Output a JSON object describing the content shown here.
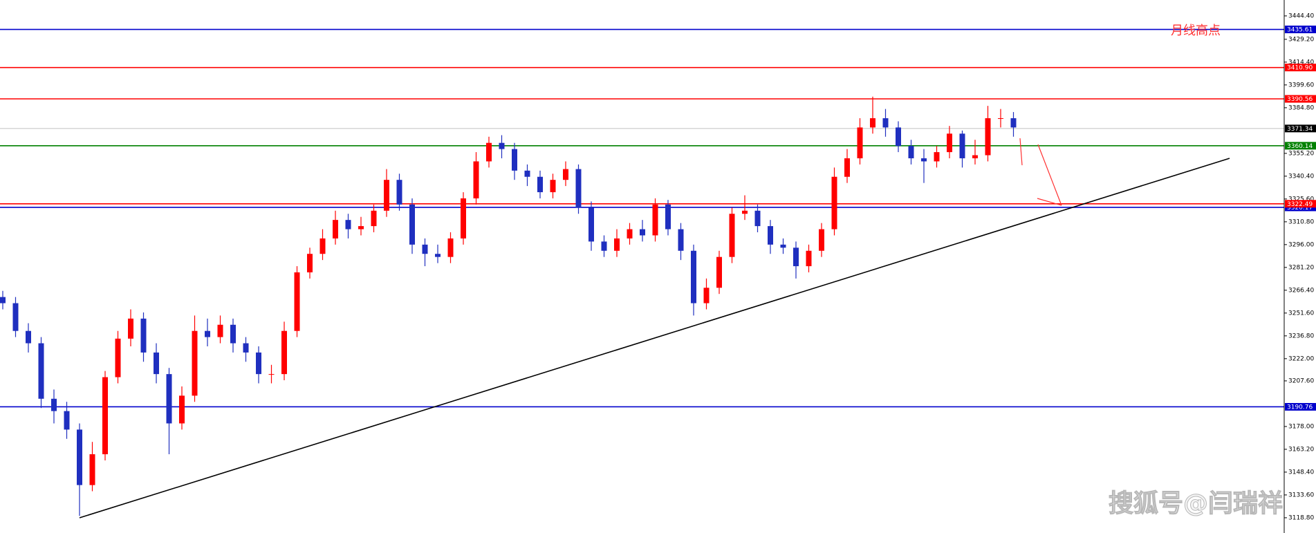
{
  "chart_data": {
    "type": "candlestick",
    "up_color": "#ff0000",
    "down_color": "#1f2fbf",
    "ylim": [
      3108.9,
      3454.7
    ],
    "yticks": [
      {
        "value": 3444.4,
        "label": "3444.40"
      },
      {
        "value": 3429.2,
        "label": "3429.20"
      },
      {
        "value": 3414.4,
        "label": "3414.40"
      },
      {
        "value": 3399.6,
        "label": "3399.60"
      },
      {
        "value": 3384.8,
        "label": "3384.80"
      },
      {
        "value": 3355.2,
        "label": "3355.20"
      },
      {
        "value": 3340.4,
        "label": "3340.40"
      },
      {
        "value": 3325.6,
        "label": "3325.60"
      },
      {
        "value": 3310.8,
        "label": "3310.80"
      },
      {
        "value": 3296,
        "label": "3296.00"
      },
      {
        "value": 3281.2,
        "label": "3281.20"
      },
      {
        "value": 3266.4,
        "label": "3266.40"
      },
      {
        "value": 3251.6,
        "label": "3251.60"
      },
      {
        "value": 3236.8,
        "label": "3236.80"
      },
      {
        "value": 3222,
        "label": "3222.00"
      },
      {
        "value": 3207.6,
        "label": "3207.60"
      },
      {
        "value": 3178,
        "label": "3178.00"
      },
      {
        "value": 3163.2,
        "label": "3163.20"
      },
      {
        "value": 3148.4,
        "label": "3148.40"
      },
      {
        "value": 3133.6,
        "label": "3133.60"
      },
      {
        "value": 3118.8,
        "label": "3118.80"
      }
    ],
    "levels": [
      {
        "value": 3435.61,
        "color": "#0000cc"
      },
      {
        "value": 3410.9,
        "label": "3410.90",
        "color": "#ff0000"
      },
      {
        "value": 3390.56,
        "color": "#ff0000"
      },
      {
        "value": 3371.34,
        "color": "#c0c0c0",
        "label_color": "#000000"
      },
      {
        "value": 3360.14,
        "color": "#008000"
      },
      {
        "value": 3320.17,
        "color": "#0000cc"
      },
      {
        "value": 3322.49,
        "color": "#ff0000"
      },
      {
        "value": 3190.76,
        "color": "#0000cc"
      }
    ],
    "annotation": "月线高点",
    "watermark": "搜狐号@闫瑞祥",
    "open": [
      3262,
      3258,
      3240,
      3232,
      3196,
      3188,
      3176,
      3140,
      3160,
      3210,
      3235,
      3248,
      3226,
      3212,
      3180,
      3198,
      3240,
      3236,
      3244,
      3232,
      3226,
      3212,
      3212,
      3240,
      3278,
      3290,
      3300,
      3312,
      3306,
      3308,
      3318,
      3338,
      3322,
      3296,
      3290,
      3288,
      3300,
      3326,
      3350,
      3362,
      3358,
      3344,
      3340,
      3330,
      3338,
      3345,
      3320,
      3298,
      3292,
      3300,
      3306,
      3302,
      3322,
      3306,
      3292,
      3258,
      3268,
      3288,
      3316,
      3318,
      3308,
      3296,
      3294,
      3282,
      3292,
      3306,
      3340,
      3352,
      3372,
      3378,
      3372,
      3360,
      3352,
      3350,
      3356,
      3368,
      3352,
      3354,
      3378,
      3378
    ],
    "high": [
      3266,
      3262,
      3245,
      3236,
      3202,
      3194,
      3180,
      3168,
      3214,
      3240,
      3254,
      3252,
      3232,
      3216,
      3204,
      3250,
      3248,
      3250,
      3248,
      3236,
      3230,
      3218,
      3246,
      3282,
      3294,
      3306,
      3318,
      3316,
      3314,
      3322,
      3345,
      3342,
      3326,
      3300,
      3296,
      3304,
      3330,
      3356,
      3366,
      3367,
      3362,
      3348,
      3344,
      3342,
      3350,
      3348,
      3324,
      3302,
      3306,
      3310,
      3312,
      3326,
      3325,
      3310,
      3296,
      3274,
      3292,
      3320,
      3328,
      3322,
      3312,
      3300,
      3298,
      3296,
      3310,
      3346,
      3358,
      3378,
      3392,
      3384,
      3376,
      3364,
      3358,
      3360,
      3373,
      3370,
      3364,
      3386,
      3384,
      3382
    ],
    "low": [
      3254,
      3236,
      3226,
      3190,
      3180,
      3170,
      3120,
      3136,
      3156,
      3206,
      3230,
      3220,
      3206,
      3160,
      3176,
      3194,
      3230,
      3232,
      3226,
      3220,
      3206,
      3206,
      3208,
      3236,
      3274,
      3286,
      3296,
      3300,
      3302,
      3304,
      3314,
      3318,
      3290,
      3282,
      3284,
      3284,
      3296,
      3322,
      3346,
      3352,
      3338,
      3334,
      3326,
      3326,
      3334,
      3316,
      3292,
      3288,
      3288,
      3296,
      3298,
      3298,
      3302,
      3286,
      3250,
      3254,
      3264,
      3284,
      3312,
      3304,
      3290,
      3290,
      3274,
      3278,
      3288,
      3302,
      3336,
      3348,
      3368,
      3366,
      3356,
      3348,
      3336,
      3346,
      3352,
      3346,
      3348,
      3350,
      3372,
      3366
    ],
    "close": [
      3258,
      3240,
      3232,
      3196,
      3188,
      3176,
      3140,
      3160,
      3210,
      3235,
      3248,
      3226,
      3212,
      3180,
      3198,
      3240,
      3236,
      3244,
      3232,
      3226,
      3212,
      3212,
      3240,
      3278,
      3290,
      3300,
      3312,
      3306,
      3308,
      3318,
      3338,
      3322,
      3296,
      3290,
      3288,
      3300,
      3326,
      3350,
      3362,
      3358,
      3344,
      3340,
      3330,
      3338,
      3345,
      3320,
      3298,
      3292,
      3300,
      3306,
      3302,
      3322,
      3306,
      3292,
      3258,
      3268,
      3288,
      3316,
      3318,
      3308,
      3296,
      3294,
      3282,
      3292,
      3306,
      3340,
      3352,
      3372,
      3378,
      3372,
      3360,
      3352,
      3350,
      3356,
      3368,
      3352,
      3354,
      3378,
      3378,
      3372
    ]
  }
}
